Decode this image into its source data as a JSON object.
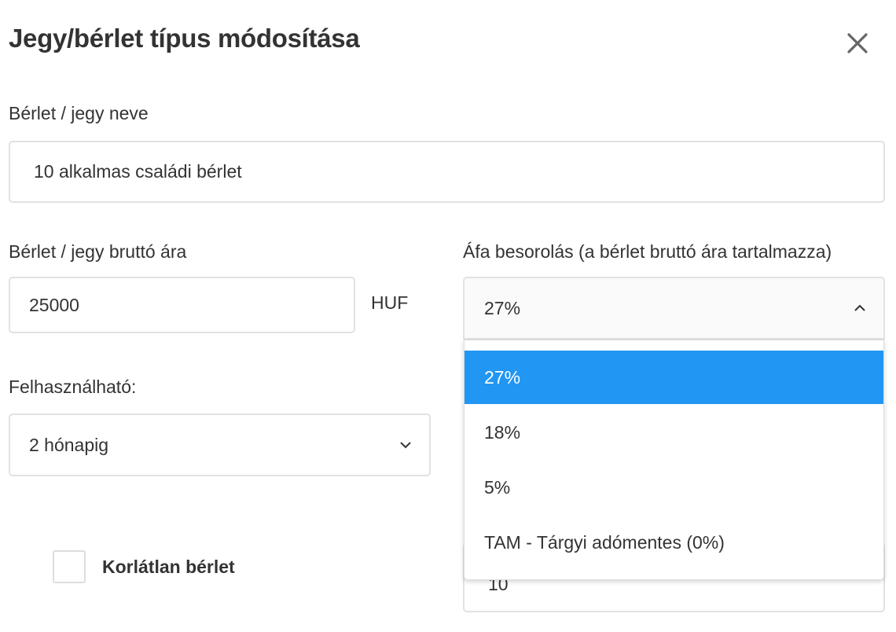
{
  "dialog": {
    "title": "Jegy/bérlet típus módosítása",
    "close_icon": "close-icon"
  },
  "name_field": {
    "label": "Bérlet / jegy neve",
    "value": "10 alkalmas családi bérlet"
  },
  "price_field": {
    "label": "Bérlet / jegy bruttó ára",
    "value": "25000",
    "currency": "HUF"
  },
  "vat_select": {
    "label": "Áfa besorolás (a bérlet bruttó ára tartalmazza)",
    "value": "27%",
    "options": [
      "27%",
      "18%",
      "5%",
      "TAM - Tárgyi adómentes (0%)"
    ],
    "selected_index": 0
  },
  "validity_select": {
    "label": "Felhasználható:",
    "value": "2 hónapig"
  },
  "unlimited_checkbox": {
    "label": "Korlátlan bérlet",
    "checked": false
  },
  "occasions_field": {
    "value": "10"
  },
  "colors": {
    "accent": "#2196f3",
    "text": "#333333",
    "border": "#e2e2e2"
  }
}
